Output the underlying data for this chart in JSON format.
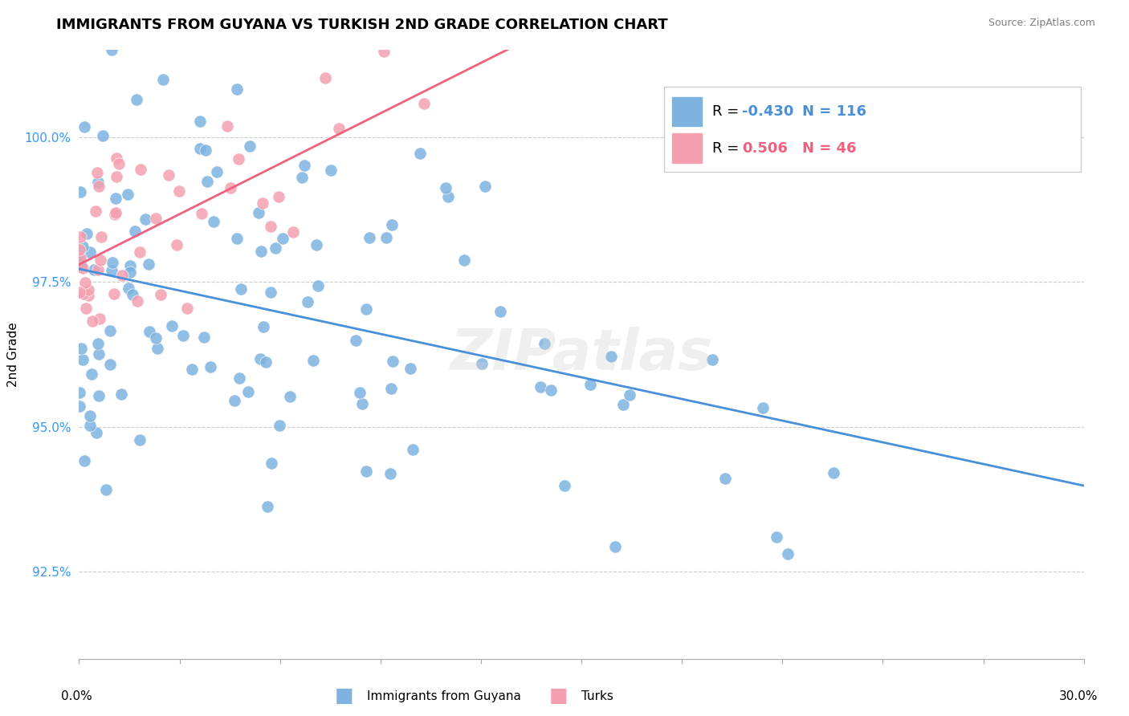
{
  "title": "IMMIGRANTS FROM GUYANA VS TURKISH 2ND GRADE CORRELATION CHART",
  "source": "Source: ZipAtlas.com",
  "ylabel": "2nd Grade",
  "xlim": [
    0.0,
    30.0
  ],
  "ylim": [
    91.0,
    101.5
  ],
  "yticks": [
    92.5,
    95.0,
    97.5,
    100.0
  ],
  "ytick_labels": [
    "92.5%",
    "95.0%",
    "97.5%",
    "100.0%"
  ],
  "blue_R": -0.43,
  "blue_N": 116,
  "pink_R": 0.506,
  "pink_N": 46,
  "blue_color": "#7EB3E0",
  "pink_color": "#F4A0B0",
  "blue_line_color": "#4A90D9",
  "pink_line_color": "#F06080",
  "watermark": "ZIPatlas",
  "legend_label_blue": "Immigrants from Guyana",
  "legend_label_pink": "Turks",
  "background_color": "#ffffff",
  "grid_color": "#cccccc",
  "label_color_blue": "#4A90D9",
  "label_color_pink": "#F06080",
  "ytick_color": "#3399FF"
}
